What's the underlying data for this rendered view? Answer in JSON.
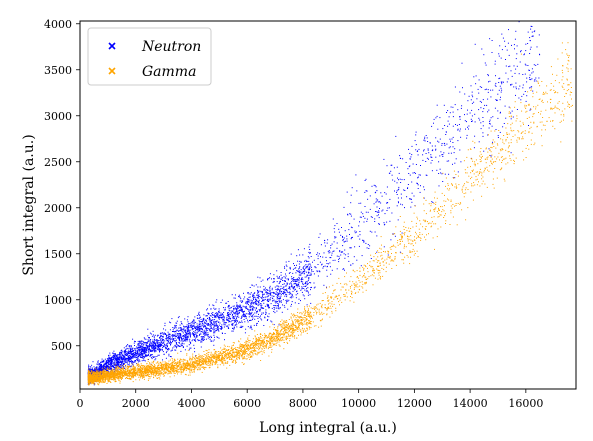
{
  "chart_data": {
    "type": "scatter",
    "title": "",
    "xlabel": "Long integral (a.u.)",
    "ylabel": "Short integral (a.u.)",
    "xlim": [
      0,
      17800
    ],
    "ylim": [
      30,
      4030
    ],
    "xticks": [
      0,
      2000,
      4000,
      6000,
      8000,
      10000,
      12000,
      14000,
      16000
    ],
    "yticks": [
      500,
      1000,
      1500,
      2000,
      2500,
      3000,
      3500,
      4000
    ],
    "grid": false,
    "legend": "top-left",
    "series": [
      {
        "name": "Neutron",
        "color": "#0000ff",
        "marker": "x",
        "trend_points": [
          [
            500,
            180
          ],
          [
            1000,
            290
          ],
          [
            2000,
            420
          ],
          [
            3000,
            540
          ],
          [
            4000,
            650
          ],
          [
            5000,
            760
          ],
          [
            6000,
            890
          ],
          [
            7000,
            1050
          ],
          [
            8000,
            1240
          ],
          [
            9000,
            1480
          ],
          [
            10000,
            1770
          ],
          [
            11000,
            2080
          ],
          [
            12000,
            2380
          ],
          [
            13000,
            2700
          ],
          [
            14000,
            3000
          ],
          [
            15000,
            3300
          ],
          [
            16000,
            3600
          ]
        ],
        "x_range": [
          300,
          16500
        ]
      },
      {
        "name": "Gamma",
        "color": "#ffa500",
        "marker": "x",
        "trend_points": [
          [
            400,
            150
          ],
          [
            1000,
            175
          ],
          [
            2000,
            210
          ],
          [
            3000,
            250
          ],
          [
            4000,
            300
          ],
          [
            5000,
            370
          ],
          [
            6000,
            460
          ],
          [
            7000,
            590
          ],
          [
            8000,
            760
          ],
          [
            9000,
            960
          ],
          [
            10000,
            1190
          ],
          [
            11000,
            1450
          ],
          [
            12000,
            1720
          ],
          [
            13000,
            2010
          ],
          [
            14000,
            2330
          ],
          [
            15000,
            2640
          ],
          [
            16000,
            2930
          ],
          [
            17000,
            3200
          ],
          [
            17500,
            3380
          ]
        ],
        "x_range": [
          300,
          17700
        ]
      }
    ]
  }
}
